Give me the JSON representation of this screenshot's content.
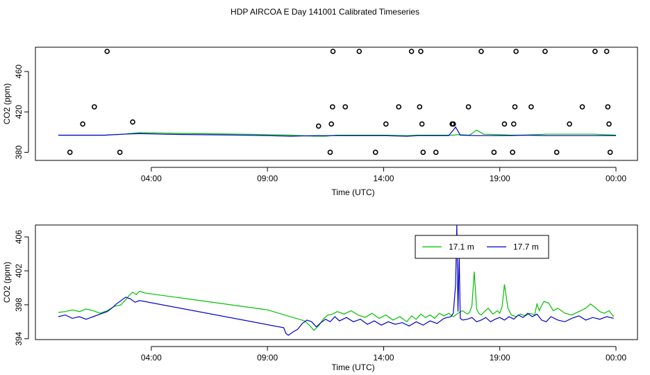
{
  "title": "HDP AIRCOA E  Day 141001  Calibrated Timeseries",
  "colors": {
    "green": "#00c000",
    "blue": "#0000cc",
    "axis": "#000000",
    "points": "#000000"
  },
  "chart_data": [
    {
      "type": "scatter",
      "title": "",
      "xlabel": "Time (UTC)",
      "ylabel": "CO2 (ppm)",
      "xlim": [
        0,
        24
      ],
      "ylim": [
        372,
        484
      ],
      "x_ticks": [
        4,
        9,
        14,
        19,
        24
      ],
      "x_tick_labels": [
        "04:00",
        "09:00",
        "14:00",
        "19:00",
        "00:00"
      ],
      "y_ticks": [
        380,
        420,
        460
      ],
      "y_tick_labels": [
        "380",
        "420",
        "460"
      ],
      "scale_hours": [
        0,
        24
      ],
      "points_x": [
        0.5,
        1.05,
        1.55,
        2.1,
        2.65,
        3.2,
        11.2,
        11.7,
        11.75,
        11.8,
        11.82,
        12.35,
        12.95,
        13.65,
        14.1,
        14.65,
        15.2,
        15.55,
        15.6,
        15.65,
        15.7,
        16.25,
        16.95,
        17.0,
        17.65,
        18.2,
        18.75,
        19.2,
        19.55,
        19.6,
        19.65,
        19.7,
        20.35,
        20.95,
        21.45,
        22.0,
        22.55,
        23.1,
        23.6,
        23.65,
        23.7,
        23.75
      ],
      "points_y": [
        380,
        408,
        425,
        485,
        380,
        410,
        406,
        380,
        408,
        425,
        485,
        425,
        485,
        380,
        408,
        425,
        485,
        425,
        485,
        408,
        380,
        380,
        408,
        408,
        425,
        485,
        380,
        408,
        380,
        408,
        425,
        485,
        425,
        485,
        380,
        408,
        425,
        485,
        485,
        425,
        408,
        380
      ],
      "series": [
        {
          "name": "17.1 m",
          "color": "#00c000",
          "x": [
            0,
            1,
            2,
            2.8,
            3.5,
            4.5,
            6,
            8,
            9,
            10,
            11,
            11.5,
            12,
            13,
            14,
            15,
            15.5,
            16,
            16.8,
            17,
            17.2,
            17.7,
            18.0,
            18.3,
            19,
            19.5,
            20,
            21,
            22,
            23,
            23.5,
            24
          ],
          "y": [
            397,
            397,
            397,
            398,
            399.5,
            399,
            398.5,
            398,
            397.5,
            397,
            396,
            396,
            397,
            397,
            397,
            396.5,
            397,
            397,
            397,
            397,
            397.5,
            397,
            402,
            398,
            397.5,
            397,
            397,
            398,
            398,
            398,
            397.5,
            397
          ]
        },
        {
          "name": "17.7 m",
          "color": "#0000cc",
          "x": [
            0,
            1,
            2,
            2.8,
            3.5,
            4.5,
            6,
            8,
            9,
            10,
            11,
            11.5,
            12,
            13,
            14,
            15,
            15.5,
            16,
            16.8,
            17,
            17.1,
            17.3,
            18,
            19,
            19.5,
            20,
            21,
            22,
            23,
            23.5,
            24
          ],
          "y": [
            397,
            397,
            397,
            398,
            398.5,
            398,
            397.5,
            397,
            396.5,
            396,
            396.5,
            396.5,
            396.5,
            396.5,
            396.5,
            396,
            396.5,
            396.5,
            396.5,
            402,
            405,
            397,
            396.5,
            396.5,
            396.5,
            397,
            396.5,
            396.5,
            396.5,
            396.5,
            396.5
          ]
        }
      ]
    },
    {
      "type": "line",
      "title": "",
      "xlabel": "Time (UTC)",
      "ylabel": "CO2 (ppm)",
      "xlim": [
        0,
        24
      ],
      "ylim": [
        393.9,
        407.4
      ],
      "x_ticks": [
        4,
        9,
        14,
        19,
        24
      ],
      "x_tick_labels": [
        "04:00",
        "09:00",
        "14:00",
        "19:00",
        "00:00"
      ],
      "y_ticks": [
        394,
        398,
        402,
        406
      ],
      "y_tick_labels": [
        "394",
        "398",
        "402",
        "406"
      ],
      "legend": {
        "position": "top-right",
        "entries": [
          "17.1 m",
          "17.7 m"
        ]
      },
      "series": [
        {
          "name": "17.1 m",
          "color": "#00c000",
          "x": [
            0,
            0.3,
            0.6,
            0.9,
            1.2,
            1.5,
            1.8,
            2.1,
            2.4,
            2.7,
            2.9,
            3.05,
            3.2,
            3.35,
            3.5,
            3.7,
            9.0,
            10.6,
            10.8,
            11.0,
            11.2,
            11.4,
            11.6,
            11.8,
            12.0,
            12.3,
            12.6,
            12.9,
            13.2,
            13.5,
            13.8,
            14.1,
            14.4,
            14.7,
            15.0,
            15.2,
            15.4,
            15.6,
            15.8,
            16.0,
            16.2,
            16.4,
            16.6,
            16.8,
            17.0,
            17.1,
            17.2,
            17.4,
            17.6,
            17.7,
            17.8,
            17.9,
            18.0,
            18.1,
            18.2,
            18.3,
            18.5,
            18.7,
            18.9,
            19.0,
            19.1,
            19.2,
            19.35,
            19.5,
            19.7,
            19.9,
            20.1,
            20.3,
            20.5,
            20.6,
            20.7,
            20.8,
            20.9,
            21.1,
            21.3,
            21.5,
            21.8,
            22.1,
            22.4,
            22.7,
            22.9,
            23.1,
            23.3,
            23.5,
            23.7,
            23.9
          ],
          "y": [
            397.1,
            397.2,
            397.4,
            397.2,
            397.5,
            397.3,
            397.0,
            397.3,
            397.8,
            398.0,
            398.6,
            399.1,
            399.5,
            399.2,
            399.6,
            399.4,
            397.4,
            396.1,
            395.6,
            395.0,
            395.5,
            396.3,
            396.8,
            396.9,
            397.2,
            396.9,
            397.3,
            396.8,
            396.5,
            397.0,
            396.4,
            396.8,
            396.2,
            396.6,
            396.0,
            396.7,
            396.3,
            396.9,
            396.5,
            396.8,
            396.4,
            397.0,
            396.7,
            397.0,
            396.6,
            396.8,
            397.0,
            397.3,
            396.9,
            397.1,
            397.9,
            401.9,
            397.5,
            397.0,
            396.8,
            397.1,
            397.6,
            396.9,
            397.3,
            397.0,
            397.8,
            400.4,
            397.6,
            396.8,
            396.6,
            396.9,
            396.7,
            397.0,
            396.8,
            398.1,
            397.3,
            397.9,
            398.4,
            398.2,
            397.3,
            397.6,
            397.0,
            396.8,
            397.2,
            397.6,
            398.1,
            397.7,
            397.2,
            397.0,
            397.3,
            396.6
          ]
        },
        {
          "name": "17.7 m",
          "color": "#0000cc",
          "x": [
            0,
            0.3,
            0.6,
            0.9,
            1.2,
            1.5,
            1.8,
            2.1,
            2.3,
            2.5,
            2.7,
            2.9,
            3.1,
            3.3,
            3.5,
            9.7,
            9.8,
            9.9,
            10.1,
            10.3,
            10.5,
            10.7,
            10.9,
            11.1,
            11.3,
            11.5,
            11.7,
            11.9,
            12.1,
            12.4,
            12.7,
            13.0,
            13.3,
            13.6,
            13.9,
            14.2,
            14.5,
            14.8,
            15.1,
            15.4,
            15.7,
            16.0,
            16.3,
            16.6,
            16.9,
            17.0,
            17.1,
            17.15,
            17.2,
            17.25,
            17.3,
            17.4,
            17.6,
            17.8,
            18.0,
            18.2,
            18.4,
            18.6,
            18.8,
            19.0,
            19.2,
            19.4,
            19.6,
            19.8,
            20.0,
            20.2,
            20.4,
            20.6,
            20.8,
            21.0,
            21.2,
            21.5,
            21.8,
            22.1,
            22.4,
            22.7,
            23.0,
            23.3,
            23.6,
            23.9
          ],
          "y": [
            396.6,
            396.8,
            396.4,
            396.6,
            396.3,
            396.6,
            396.9,
            397.2,
            397.6,
            398.1,
            398.5,
            398.9,
            398.7,
            398.3,
            398.5,
            395.3,
            394.6,
            394.4,
            394.8,
            395.1,
            395.8,
            396.2,
            396.0,
            395.4,
            395.9,
            396.3,
            396.0,
            396.6,
            396.1,
            396.5,
            396.0,
            396.3,
            395.7,
            396.1,
            395.6,
            396.0,
            395.7,
            395.9,
            395.5,
            396.0,
            395.6,
            396.1,
            395.8,
            396.4,
            396.6,
            397.0,
            400.4,
            407.4,
            397.2,
            403.9,
            396.4,
            396.2,
            396.3,
            396.5,
            396.0,
            396.2,
            396.5,
            396.0,
            396.3,
            396.5,
            396.2,
            396.6,
            396.3,
            396.8,
            396.5,
            397.0,
            396.6,
            396.9,
            396.2,
            396.0,
            396.6,
            396.2,
            396.0,
            396.4,
            396.7,
            396.2,
            396.5,
            396.3,
            396.6,
            396.4
          ]
        }
      ]
    }
  ]
}
